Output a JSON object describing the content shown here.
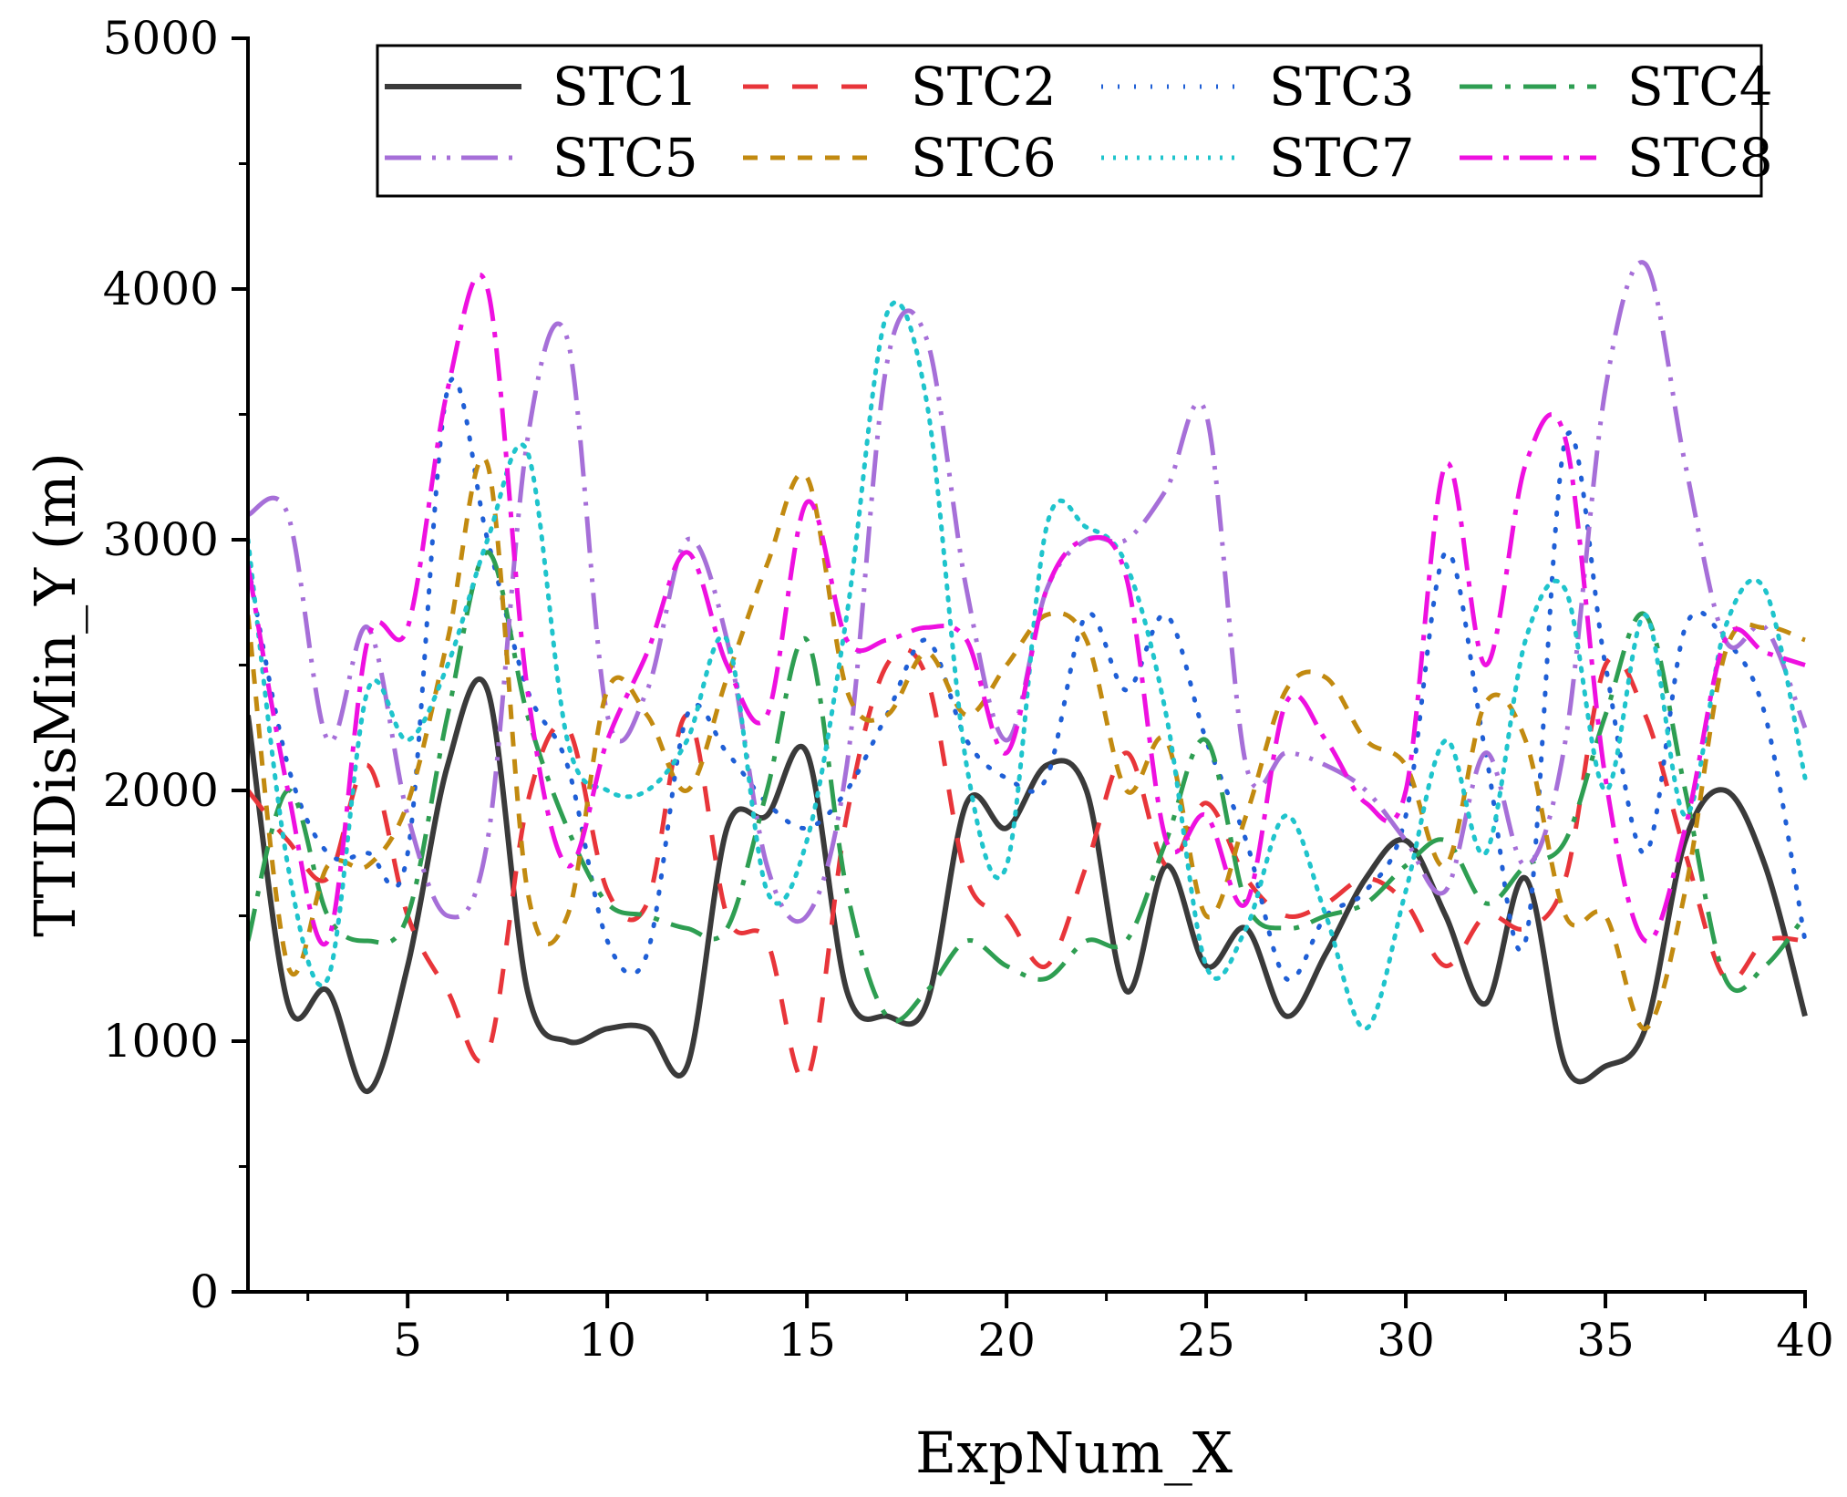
{
  "chart_data": {
    "type": "line",
    "title": "",
    "xlabel": "ExpNum_X",
    "ylabel": "TTIDisMin_Y (m)",
    "xlim": [
      1,
      40
    ],
    "ylim": [
      0,
      5000
    ],
    "xticks": [
      5,
      10,
      15,
      20,
      25,
      30,
      35,
      40
    ],
    "yticks": [
      0,
      1000,
      2000,
      3000,
      4000,
      5000
    ],
    "legend_position": "top-right",
    "x": [
      1,
      2,
      3,
      4,
      5,
      6,
      7,
      8,
      9,
      10,
      11,
      12,
      13,
      14,
      15,
      16,
      17,
      18,
      19,
      20,
      21,
      22,
      23,
      24,
      25,
      26,
      27,
      28,
      29,
      30,
      31,
      32,
      33,
      34,
      35,
      36,
      37,
      38,
      39,
      40
    ],
    "series": [
      {
        "name": "STC1",
        "color": "#3a3a3a",
        "dash": "solid",
        "values": [
          2300,
          1150,
          1200,
          800,
          1300,
          2100,
          2400,
          1200,
          1000,
          1050,
          1050,
          900,
          1850,
          1900,
          2150,
          1200,
          1100,
          1150,
          1950,
          1850,
          2100,
          2000,
          1200,
          1700,
          1300,
          1450,
          1100,
          1350,
          1650,
          1800,
          1500,
          1150,
          1650,
          900,
          900,
          1050,
          1800,
          2000,
          1700,
          1100
        ]
      },
      {
        "name": "STC2",
        "color": "#e8353a",
        "dash": "28,26",
        "values": [
          2000,
          1800,
          1650,
          2100,
          1500,
          1200,
          950,
          1950,
          2250,
          1600,
          1550,
          2300,
          1500,
          1400,
          850,
          1900,
          2500,
          2450,
          1650,
          1500,
          1300,
          1700,
          2150,
          1700,
          1950,
          1650,
          1500,
          1550,
          1650,
          1550,
          1300,
          1500,
          1450,
          1650,
          2500,
          2300,
          1750,
          1250,
          1400,
          1400
        ]
      },
      {
        "name": "STC3",
        "color": "#1f5fd6",
        "dash": "2,16",
        "values": [
          2900,
          2100,
          1750,
          1750,
          1750,
          3600,
          3000,
          2400,
          2100,
          1400,
          1350,
          2300,
          2150,
          1950,
          1850,
          2000,
          2300,
          2600,
          2200,
          2050,
          2050,
          2700,
          2400,
          2700,
          2200,
          1800,
          1250,
          1500,
          1600,
          1900,
          2950,
          2150,
          1400,
          3400,
          2500,
          1750,
          2650,
          2600,
          2300,
          1400
        ]
      },
      {
        "name": "STC4",
        "color": "#2e9e52",
        "dash": "36,14,6,14",
        "values": [
          1400,
          2000,
          1500,
          1400,
          1500,
          2300,
          2950,
          2300,
          1850,
          1550,
          1500,
          1450,
          1450,
          2000,
          2600,
          1600,
          1100,
          1200,
          1400,
          1300,
          1250,
          1400,
          1400,
          1800,
          2200,
          1550,
          1450,
          1500,
          1550,
          1700,
          1800,
          1550,
          1700,
          1800,
          2300,
          2700,
          2000,
          1250,
          1300,
          1500
        ]
      },
      {
        "name": "STC5",
        "color": "#a66fd8",
        "dash": "40,12,4,12,4,12",
        "values": [
          3100,
          3100,
          2200,
          2650,
          1900,
          1500,
          1800,
          3400,
          3800,
          2300,
          2400,
          3000,
          2600,
          1700,
          1500,
          2100,
          3700,
          3800,
          2800,
          2200,
          2800,
          3000,
          3000,
          3200,
          3500,
          2100,
          2150,
          2100,
          2000,
          1800,
          1600,
          2150,
          1700,
          2200,
          3600,
          4100,
          3300,
          2600,
          2650,
          2250
        ]
      },
      {
        "name": "STC6",
        "color": "#c28a10",
        "dash": "16,14",
        "values": [
          2700,
          1300,
          1700,
          1700,
          1950,
          2600,
          3300,
          1600,
          1500,
          2400,
          2300,
          2000,
          2450,
          2900,
          3250,
          2400,
          2300,
          2550,
          2300,
          2500,
          2700,
          2600,
          2000,
          2200,
          1500,
          1900,
          2400,
          2450,
          2200,
          2100,
          1700,
          2350,
          2200,
          1500,
          1500,
          1050,
          1600,
          2550,
          2650,
          2600
        ]
      },
      {
        "name": "STC7",
        "color": "#1fc4cc",
        "dash": "3,10",
        "values": [
          3000,
          1700,
          1250,
          2400,
          2200,
          2500,
          3000,
          3350,
          2200,
          2000,
          2000,
          2200,
          2600,
          1600,
          1800,
          2700,
          3900,
          3550,
          2100,
          1700,
          3050,
          3050,
          2900,
          2300,
          1300,
          1450,
          1900,
          1500,
          1050,
          1600,
          2200,
          1750,
          2600,
          2800,
          2000,
          2700,
          1900,
          2650,
          2800,
          2050
        ]
      },
      {
        "name": "STC8",
        "color": "#ee10e0",
        "dash": "36,12,6,12",
        "values": [
          2900,
          2000,
          1400,
          2600,
          2650,
          3600,
          4000,
          2400,
          1700,
          2200,
          2550,
          2950,
          2500,
          2300,
          3150,
          2600,
          2600,
          2650,
          2600,
          2150,
          2800,
          3000,
          2850,
          1800,
          1900,
          1550,
          2350,
          2200,
          1950,
          2000,
          3300,
          2500,
          3300,
          3400,
          2050,
          1400,
          1850,
          2600,
          2550,
          2500
        ]
      }
    ]
  }
}
